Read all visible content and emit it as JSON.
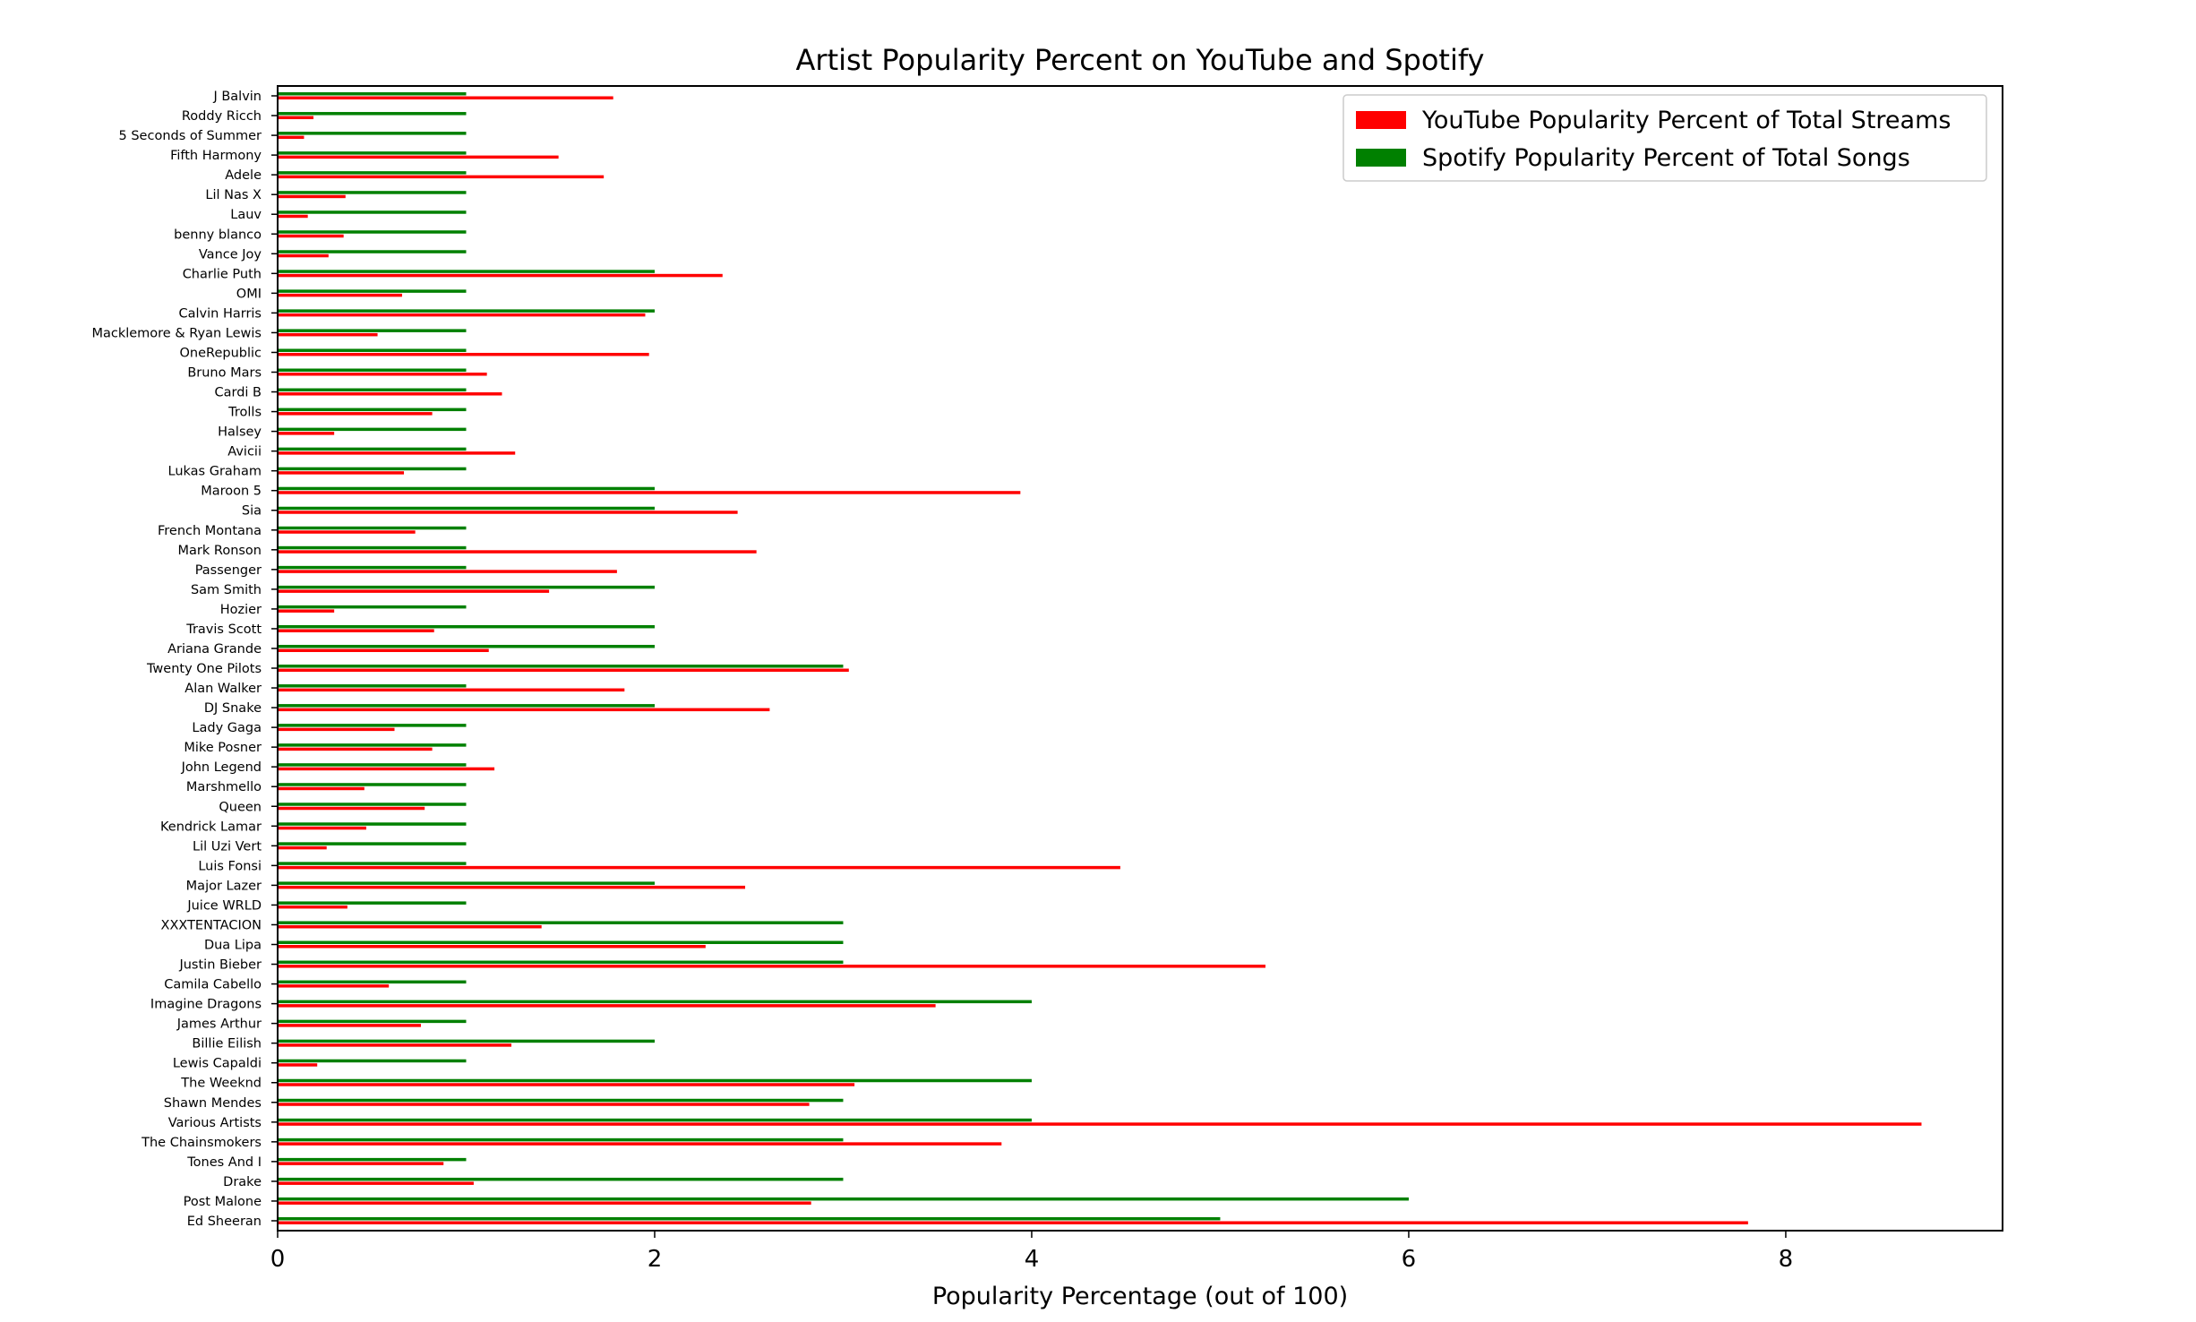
{
  "chart_data": {
    "type": "bar",
    "orientation": "horizontal",
    "title": "Artist Popularity Percent on YouTube and Spotify",
    "xlabel": "Popularity Percentage (out of 100)",
    "ylabel": "",
    "xlim": [
      0,
      9.15
    ],
    "x_ticks": [
      "0",
      "2",
      "4",
      "6",
      "8"
    ],
    "grid": false,
    "legend_position": "top-right",
    "categories": [
      "J Balvin",
      "Roddy Ricch",
      "5 Seconds of Summer",
      "Fifth Harmony",
      "Adele",
      "Lil Nas X",
      "Lauv",
      "benny blanco",
      "Vance Joy",
      "Charlie Puth",
      "OMI",
      "Calvin Harris",
      "Macklemore & Ryan Lewis",
      "OneRepublic",
      "Bruno Mars",
      "Cardi B",
      "Trolls",
      "Halsey",
      "Avicii",
      "Lukas Graham",
      "Maroon 5",
      "Sia",
      "French Montana",
      "Mark Ronson",
      "Passenger",
      "Sam Smith",
      "Hozier",
      "Travis Scott",
      "Ariana Grande",
      "Twenty One Pilots",
      "Alan Walker",
      "DJ Snake",
      "Lady Gaga",
      "Mike Posner",
      "John Legend",
      "Marshmello",
      "Queen",
      "Kendrick Lamar",
      "Lil Uzi Vert",
      "Luis Fonsi",
      "Major Lazer",
      "Juice WRLD",
      "XXXTENTACION",
      "Dua Lipa",
      "Justin Bieber",
      "Camila Cabello",
      "Imagine Dragons",
      "James Arthur",
      "Billie Eilish",
      "Lewis Capaldi",
      "The Weeknd",
      "Shawn Mendes",
      "Various Artists",
      "The Chainsmokers",
      "Tones And I",
      "Drake",
      "Post Malone",
      "Ed Sheeran"
    ],
    "series": [
      {
        "name": "YouTube Popularity Percent of Total Streams",
        "color": "#ff0000",
        "values": [
          1.78,
          0.19,
          0.14,
          1.49,
          1.73,
          0.36,
          0.16,
          0.35,
          0.27,
          2.36,
          0.66,
          1.95,
          0.53,
          1.97,
          1.11,
          1.19,
          0.82,
          0.3,
          1.26,
          0.67,
          3.94,
          2.44,
          0.73,
          2.54,
          1.8,
          1.44,
          0.3,
          0.83,
          1.12,
          3.03,
          1.84,
          2.61,
          0.62,
          0.82,
          1.15,
          0.46,
          0.78,
          0.47,
          0.26,
          4.47,
          2.48,
          0.37,
          1.4,
          2.27,
          5.24,
          0.59,
          3.49,
          0.76,
          1.24,
          0.21,
          3.06,
          2.82,
          8.72,
          3.84,
          0.88,
          1.04,
          2.83,
          7.8
        ]
      },
      {
        "name": "Spotify Popularity Percent of Total Songs",
        "color": "#008000",
        "values": [
          1,
          1,
          1,
          1,
          1,
          1,
          1,
          1,
          1,
          2,
          1,
          2,
          1,
          1,
          1,
          1,
          1,
          1,
          1,
          1,
          2,
          2,
          1,
          1,
          1,
          2,
          1,
          2,
          2,
          3,
          1,
          2,
          1,
          1,
          1,
          1,
          1,
          1,
          1,
          1,
          2,
          1,
          3,
          3,
          3,
          1,
          4,
          1,
          2,
          1,
          4,
          3,
          4,
          3,
          1,
          3,
          6,
          5
        ]
      }
    ]
  }
}
